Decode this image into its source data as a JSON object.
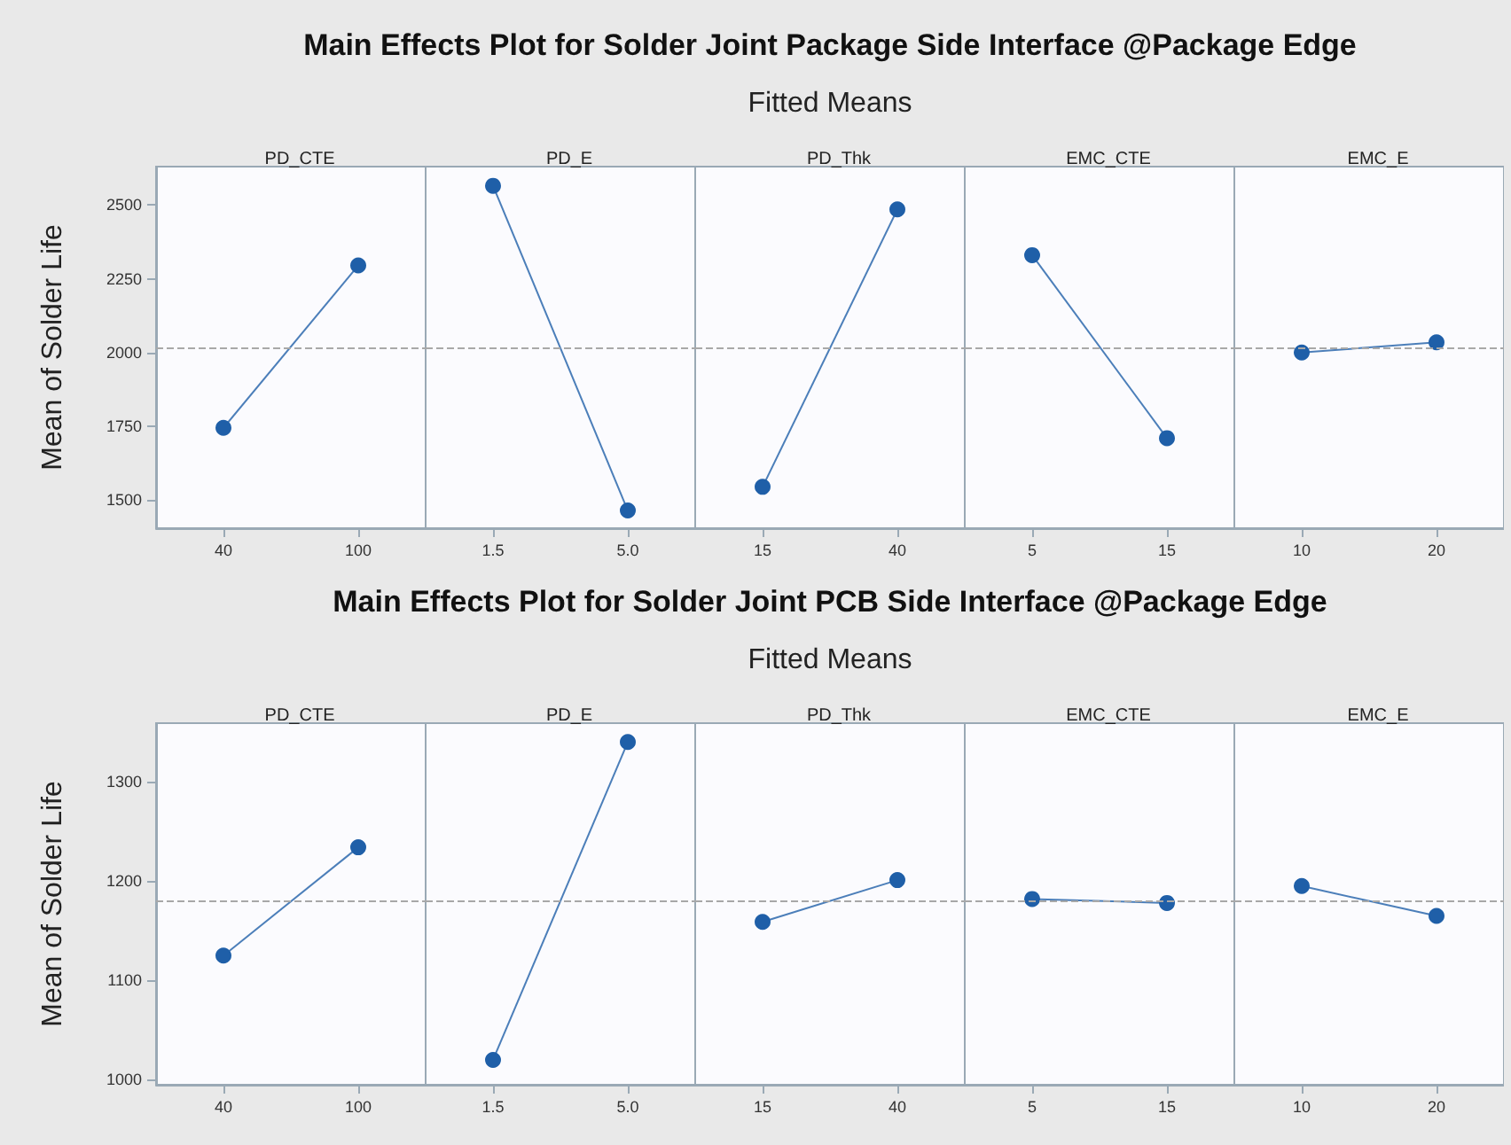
{
  "chart_data": [
    {
      "type": "line",
      "xlabel": "PD_CTE",
      "ylabel": "Mean of Solder Life",
      "categories": [
        "40",
        "100"
      ],
      "values": [
        1745,
        2295
      ],
      "color": "#1f5fa8",
      "marker": "circle",
      "ylim": [
        1405,
        2630
      ],
      "yticks": [
        1500,
        1750,
        2000,
        2250,
        2500
      ],
      "ref_lines": [
        {
          "axis": "y",
          "value": 2017,
          "color": "#a8a8a8",
          "line_style": "dashed"
        }
      ]
    },
    {
      "type": "line",
      "xlabel": "PD_E",
      "categories": [
        "1.5",
        "5.0"
      ],
      "values": [
        2565,
        1465
      ],
      "color": "#1f5fa8",
      "marker": "circle",
      "ylim": [
        1405,
        2630
      ],
      "yticks": [
        1500,
        1750,
        2000,
        2250,
        2500
      ],
      "tick_labels": "x",
      "ref_lines": [
        {
          "axis": "y",
          "value": 2017,
          "color": "#a8a8a8",
          "line_style": "dashed"
        }
      ]
    },
    {
      "type": "line",
      "title": "Main Effects Plot for Solder Joint Package Side Interface @Package Edge",
      "subtitle": "Fitted Means",
      "xlabel": "PD_Thk",
      "categories": [
        "15",
        "40"
      ],
      "values": [
        1545,
        2485
      ],
      "color": "#1f5fa8",
      "marker": "circle",
      "ylim": [
        1405,
        2630
      ],
      "yticks": [
        1500,
        1750,
        2000,
        2250,
        2500
      ],
      "tick_labels": "x",
      "ref_lines": [
        {
          "axis": "y",
          "value": 2017,
          "color": "#a8a8a8",
          "line_style": "dashed"
        }
      ]
    },
    {
      "type": "line",
      "xlabel": "EMC_CTE",
      "categories": [
        "5",
        "15"
      ],
      "values": [
        2330,
        1710
      ],
      "color": "#1f5fa8",
      "marker": "circle",
      "ylim": [
        1405,
        2630
      ],
      "yticks": [
        1500,
        1750,
        2000,
        2250,
        2500
      ],
      "tick_labels": "x",
      "ref_lines": [
        {
          "axis": "y",
          "value": 2017,
          "color": "#a8a8a8",
          "line_style": "dashed"
        }
      ]
    },
    {
      "type": "line",
      "xlabel": "EMC_E",
      "categories": [
        "10",
        "20"
      ],
      "values": [
        2000,
        2035
      ],
      "color": "#1f5fa8",
      "marker": "circle",
      "ylim": [
        1405,
        2630
      ],
      "yticks": [
        1500,
        1750,
        2000,
        2250,
        2500
      ],
      "tick_labels": "x",
      "ref_lines": [
        {
          "axis": "y",
          "value": 2017,
          "color": "#a8a8a8",
          "line_style": "dashed"
        }
      ]
    },
    {
      "type": "line",
      "xlabel": "PD_CTE",
      "ylabel": "Mean of Solder Life",
      "categories": [
        "40",
        "100"
      ],
      "values": [
        1125,
        1234
      ],
      "color": "#1f5fa8",
      "marker": "circle",
      "ylim": [
        995,
        1359
      ],
      "yticks": [
        1000,
        1100,
        1200,
        1300
      ],
      "ref_lines": [
        {
          "axis": "y",
          "value": 1180,
          "color": "#a8a8a8",
          "line_style": "dashed"
        }
      ]
    },
    {
      "type": "line",
      "xlabel": "PD_E",
      "categories": [
        "1.5",
        "5.0"
      ],
      "values": [
        1020,
        1340
      ],
      "color": "#1f5fa8",
      "marker": "circle",
      "ylim": [
        995,
        1359
      ],
      "yticks": [
        1000,
        1100,
        1200,
        1300
      ],
      "tick_labels": "x",
      "ref_lines": [
        {
          "axis": "y",
          "value": 1180,
          "color": "#a8a8a8",
          "line_style": "dashed"
        }
      ]
    },
    {
      "type": "line",
      "title": "Main Effects Plot for Solder Joint PCB Side Interface @Package Edge",
      "subtitle": "Fitted Means",
      "xlabel": "PD_Thk",
      "categories": [
        "15",
        "40"
      ],
      "values": [
        1159,
        1201
      ],
      "color": "#1f5fa8",
      "marker": "circle",
      "ylim": [
        995,
        1359
      ],
      "yticks": [
        1000,
        1100,
        1200,
        1300
      ],
      "tick_labels": "x",
      "ref_lines": [
        {
          "axis": "y",
          "value": 1180,
          "color": "#a8a8a8",
          "line_style": "dashed"
        }
      ]
    },
    {
      "type": "line",
      "xlabel": "EMC_CTE",
      "categories": [
        "5",
        "15"
      ],
      "values": [
        1182,
        1178
      ],
      "color": "#1f5fa8",
      "marker": "circle",
      "ylim": [
        995,
        1359
      ],
      "yticks": [
        1000,
        1100,
        1200,
        1300
      ],
      "tick_labels": "x",
      "ref_lines": [
        {
          "axis": "y",
          "value": 1180,
          "color": "#a8a8a8",
          "line_style": "dashed"
        }
      ]
    },
    {
      "type": "line",
      "xlabel": "EMC_E",
      "categories": [
        "10",
        "20"
      ],
      "values": [
        1195,
        1165
      ],
      "color": "#1f5fa8",
      "marker": "circle",
      "ylim": [
        995,
        1359
      ],
      "yticks": [
        1000,
        1100,
        1200,
        1300
      ],
      "tick_labels": "x",
      "ref_lines": [
        {
          "axis": "y",
          "value": 1180,
          "color": "#a8a8a8",
          "line_style": "dashed"
        }
      ]
    }
  ]
}
